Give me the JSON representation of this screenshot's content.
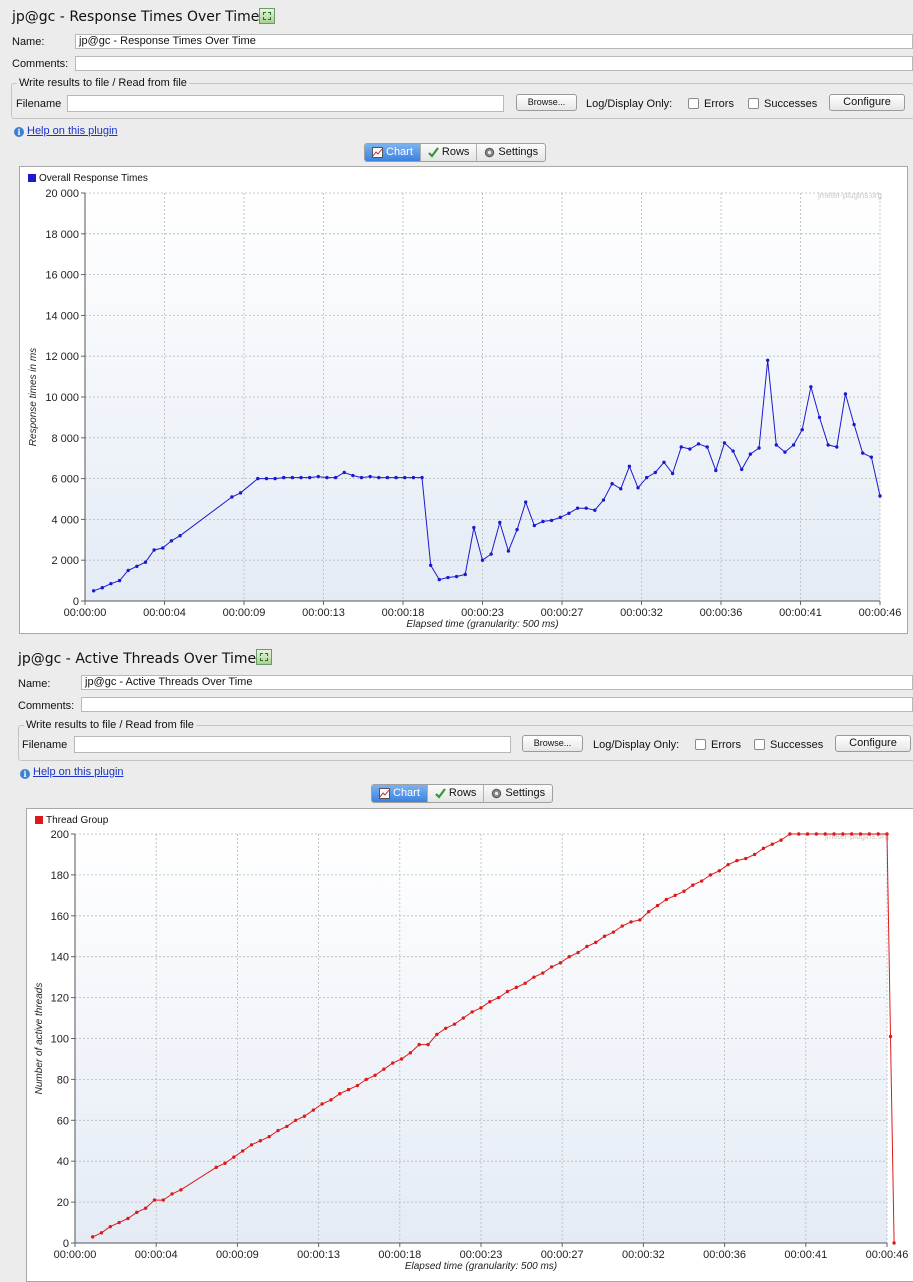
{
  "panels": [
    {
      "title": "jp@gc - Response Times Over Time",
      "name_label": "Name:",
      "name_value": "jp@gc - Response Times Over Time",
      "comments_label": "Comments:",
      "comments_value": "",
      "file_group_title": "Write results to file / Read from file",
      "filename_label": "Filename",
      "filename_value": "",
      "browse_label": "Browse...",
      "log_display_label": "Log/Display Only:",
      "errors_label": "Errors",
      "successes_label": "Successes",
      "configure_label": "Configure",
      "help_label": "Help on this plugin",
      "tabs": [
        "Chart",
        "Rows",
        "Settings"
      ],
      "watermark": "jmeter-plugins.org",
      "chart_data": {
        "type": "line",
        "series": [
          {
            "name": "Overall Response Times",
            "color": "#1a1ad0",
            "x": [
              0.5,
              1,
              1.5,
              2,
              2.5,
              3,
              3.5,
              4,
              4.5,
              5,
              5.5,
              8.5,
              9,
              10,
              10.5,
              11,
              11.5,
              12,
              12.5,
              13,
              13.5,
              14,
              14.5,
              15,
              15.5,
              16,
              16.5,
              17,
              17.5,
              18,
              18.5,
              19,
              19.5,
              20,
              20.5,
              21,
              21.5,
              22,
              22.5,
              23,
              23.5,
              24,
              24.5,
              25,
              25.5,
              26,
              26.5,
              27,
              27.5,
              28,
              28.5,
              29,
              29.5,
              30,
              30.5,
              31,
              31.5,
              32,
              32.5,
              33,
              33.5,
              34,
              34.5,
              35,
              35.5,
              36,
              36.5,
              37,
              37.5,
              38,
              38.5,
              39,
              39.5,
              40,
              40.5,
              41,
              41.5,
              42,
              42.5,
              43,
              43.5,
              44,
              44.5,
              45,
              45.5,
              46
            ],
            "values": [
              500,
              650,
              850,
              1000,
              1500,
              1700,
              1900,
              2500,
              2600,
              2950,
              3200,
              5100,
              5300,
              6000,
              6000,
              6000,
              6050,
              6050,
              6050,
              6050,
              6100,
              6050,
              6050,
              6300,
              6150,
              6050,
              6100,
              6050,
              6050,
              6050,
              6050,
              6050,
              6050,
              1750,
              1050,
              1150,
              1200,
              1300,
              3600,
              2000,
              2300,
              3850,
              2450,
              3500,
              4850,
              3700,
              3900,
              3950,
              4100,
              4300,
              4550,
              4550,
              4450,
              4950,
              5750,
              5500,
              6600,
              5550,
              6050,
              6300,
              6800,
              6250,
              7550,
              7450,
              7700,
              7550,
              6400,
              7750,
              7350,
              6450,
              7200,
              7500,
              11800,
              7650,
              7300,
              7650,
              8400,
              10500,
              9000,
              7650,
              7550,
              10150,
              8650,
              7250,
              7050,
              5150
            ]
          }
        ],
        "ylabel": "Response times in ms",
        "xlabel": "Elapsed time (granularity: 500 ms)",
        "ylim": [
          0,
          20000
        ],
        "yticks": [
          "0",
          "2 000",
          "4 000",
          "6 000",
          "8 000",
          "10 000",
          "12 000",
          "14 000",
          "16 000",
          "18 000",
          "20 000"
        ],
        "xlim": [
          0,
          46
        ],
        "xticks": [
          "00:00:00",
          "00:00:04",
          "00:00:09",
          "00:00:13",
          "00:00:18",
          "00:00:23",
          "00:00:27",
          "00:00:32",
          "00:00:36",
          "00:00:41",
          "00:00:46"
        ],
        "legend_position": "top-left",
        "grid": true
      }
    },
    {
      "title": "jp@gc - Active Threads Over Time",
      "name_label": "Name:",
      "name_value": "jp@gc - Active Threads Over Time",
      "comments_label": "Comments:",
      "comments_value": "",
      "file_group_title": "Write results to file / Read from file",
      "filename_label": "Filename",
      "filename_value": "",
      "browse_label": "Browse...",
      "log_display_label": "Log/Display Only:",
      "errors_label": "Errors",
      "successes_label": "Successes",
      "configure_label": "Configure",
      "help_label": "Help on this plugin",
      "tabs": [
        "Chart",
        "Rows",
        "Settings"
      ],
      "watermark": "jmeter-plugins.org",
      "chart_data": {
        "type": "line",
        "series": [
          {
            "name": "Thread Group",
            "color": "#dd1a1a",
            "x": [
              1,
              1.5,
              2,
              2.5,
              3,
              3.5,
              4,
              4.5,
              5,
              5.5,
              6,
              8,
              8.5,
              9,
              9.5,
              10,
              10.5,
              11,
              11.5,
              12,
              12.5,
              13,
              13.5,
              14,
              14.5,
              15,
              15.5,
              16,
              16.5,
              17,
              17.5,
              18,
              18.5,
              19,
              19.5,
              20,
              20.5,
              21,
              21.5,
              22,
              22.5,
              23,
              23.5,
              24,
              24.5,
              25,
              25.5,
              26,
              26.5,
              27,
              27.5,
              28,
              28.5,
              29,
              29.5,
              30,
              30.5,
              31,
              31.5,
              32,
              32.5,
              33,
              33.5,
              34,
              34.5,
              35,
              35.5,
              36,
              36.5,
              37,
              37.5,
              38,
              38.5,
              39,
              39.5,
              40,
              40.5,
              41,
              41.5,
              42,
              42.5,
              43,
              43.5,
              44,
              44.5,
              45,
              45.5,
              46,
              46.2,
              46.4
            ],
            "values": [
              3,
              5,
              8,
              10,
              12,
              15,
              17,
              21,
              21,
              24,
              26,
              37,
              39,
              42,
              45,
              48,
              50,
              52,
              55,
              57,
              60,
              62,
              65,
              68,
              70,
              73,
              75,
              77,
              80,
              82,
              85,
              88,
              90,
              93,
              97,
              97,
              102,
              105,
              107,
              110,
              113,
              115,
              118,
              120,
              123,
              125,
              127,
              130,
              132,
              135,
              137,
              140,
              142,
              145,
              147,
              150,
              152,
              155,
              157,
              158,
              162,
              165,
              168,
              170,
              172,
              175,
              177,
              180,
              182,
              185,
              187,
              188,
              190,
              193,
              195,
              197,
              200,
              200,
              200,
              200,
              200,
              200,
              200,
              200,
              200,
              200,
              200,
              200,
              101,
              0
            ]
          }
        ],
        "ylabel": "Number of active threads",
        "xlabel": "Elapsed time (granularity: 500 ms)",
        "ylim": [
          0,
          200
        ],
        "yticks": [
          "0",
          "20",
          "40",
          "60",
          "80",
          "100",
          "120",
          "140",
          "160",
          "180",
          "200"
        ],
        "xlim": [
          0,
          46
        ],
        "xticks": [
          "00:00:00",
          "00:00:04",
          "00:00:09",
          "00:00:13",
          "00:00:18",
          "00:00:23",
          "00:00:27",
          "00:00:32",
          "00:00:36",
          "00:00:41",
          "00:00:46"
        ],
        "legend_position": "top-left",
        "grid": true
      }
    }
  ]
}
